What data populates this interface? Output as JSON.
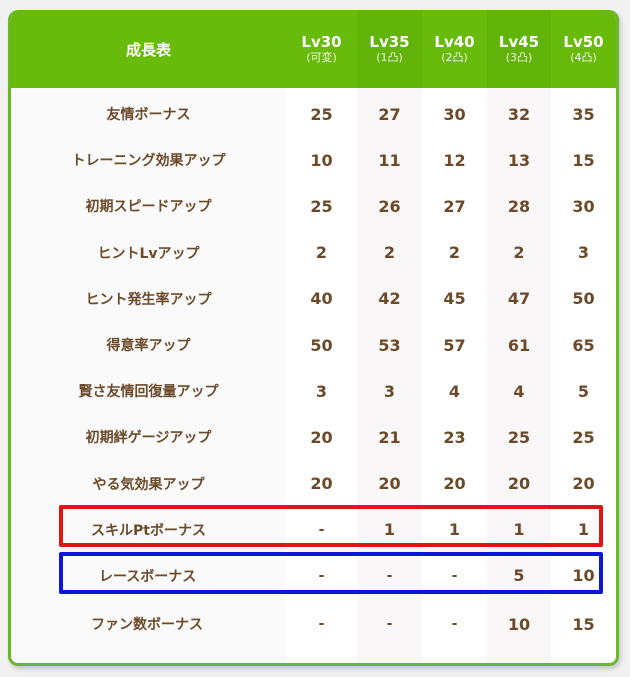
{
  "table": {
    "title": "成長表",
    "columns": [
      {
        "level": "Lv30",
        "note": "(可変)"
      },
      {
        "level": "Lv35",
        "note": "(1凸)"
      },
      {
        "level": "Lv40",
        "note": "(2凸)"
      },
      {
        "level": "Lv45",
        "note": "(3凸)"
      },
      {
        "level": "Lv50",
        "note": "(4凸)"
      }
    ],
    "rows": [
      {
        "label": "友情ボーナス",
        "values": [
          "25",
          "27",
          "30",
          "32",
          "35"
        ]
      },
      {
        "label": "トレーニング効果アップ",
        "values": [
          "10",
          "11",
          "12",
          "13",
          "15"
        ]
      },
      {
        "label": "初期スピードアップ",
        "values": [
          "25",
          "26",
          "27",
          "28",
          "30"
        ]
      },
      {
        "label": "ヒントLvアップ",
        "values": [
          "2",
          "2",
          "2",
          "2",
          "3"
        ]
      },
      {
        "label": "ヒント発生率アップ",
        "values": [
          "40",
          "42",
          "45",
          "47",
          "50"
        ]
      },
      {
        "label": "得意率アップ",
        "values": [
          "50",
          "53",
          "57",
          "61",
          "65"
        ]
      },
      {
        "label": "賢さ友情回復量アップ",
        "values": [
          "3",
          "3",
          "4",
          "4",
          "5"
        ]
      },
      {
        "label": "初期絆ゲージアップ",
        "values": [
          "20",
          "21",
          "23",
          "25",
          "25"
        ]
      },
      {
        "label": "やる気効果アップ",
        "values": [
          "20",
          "20",
          "20",
          "20",
          "20"
        ]
      },
      {
        "label": "スキルPtボーナス",
        "values": [
          "-",
          "1",
          "1",
          "1",
          "1"
        ]
      },
      {
        "label": "レースボーナス",
        "values": [
          "-",
          "-",
          "-",
          "5",
          "10"
        ]
      },
      {
        "label": "ファン数ボーナス",
        "values": [
          "-",
          "-",
          "-",
          "10",
          "15"
        ]
      }
    ]
  },
  "highlights": {
    "red": {
      "row": "スキルPtボーナス",
      "color": "#e01616"
    },
    "blue": {
      "row": "レースボーナス",
      "color": "#0c16d6"
    }
  },
  "colors": {
    "header_green": "#68bb0b",
    "border_green": "#6ab72c",
    "text_brown": "#6b4a2a"
  }
}
